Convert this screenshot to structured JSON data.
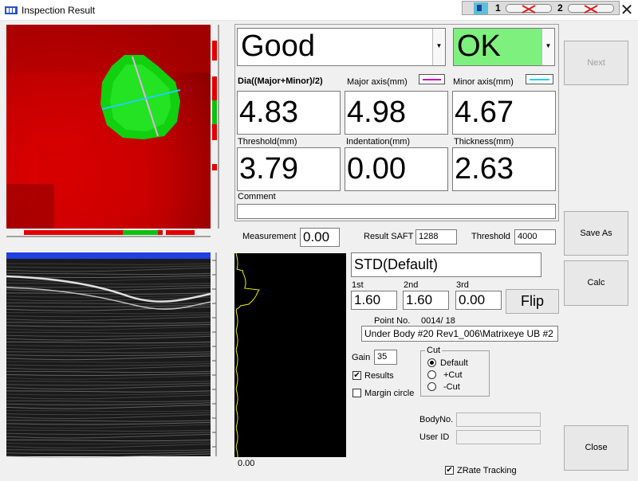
{
  "window": {
    "title": "Inspection Result",
    "tray": {
      "slot1": "1",
      "slot2": "2"
    }
  },
  "result": {
    "quality": "Good",
    "verdict": "OK",
    "verdict_color": "#7ef07e"
  },
  "measurements": {
    "dia_label": "Dia((Major+Minor)/2)",
    "dia_value": "4.83",
    "major_label": "Major axis(mm)",
    "major_value": "4.98",
    "major_color": "#c000c0",
    "minor_label": "Minor axis(mm)",
    "minor_value": "4.67",
    "minor_color": "#20d0f0",
    "threshold_label": "Threshold(mm)",
    "threshold_value": "3.79",
    "indentation_label": "Indentation(mm)",
    "indentation_value": "0.00",
    "thickness_label": "Thickness(mm)",
    "thickness_value": "2.63",
    "comment_label": "Comment",
    "comment_value": ""
  },
  "ascan": {
    "measurement_label": "Measurement",
    "measurement_value": "0.00",
    "result_saft_label": "Result SAFT",
    "result_saft_value": "1288",
    "threshold_label": "Threshold",
    "threshold_value": "4000",
    "bottom_value": "0.00"
  },
  "settings": {
    "profile": "STD(Default)",
    "first_label": "1st",
    "first_value": "1.60",
    "second_label": "2nd",
    "second_value": "1.60",
    "third_label": "3rd",
    "third_value": "0.00",
    "flip_label": "Flip",
    "point_label": "Point No.",
    "point_value": "0014/  18",
    "path_value": "Under Body #20 Rev1_006\\Matrixeye UB #2",
    "gain_label": "Gain",
    "gain_value": "35",
    "results_label": "Results",
    "results_checked": "✔",
    "margin_label": "Margin circle",
    "cut_title": "Cut",
    "cut_default": "Default",
    "cut_plus": "+Cut",
    "cut_minus": "-Cut",
    "body_label": "BodyNo.",
    "body_value": "",
    "user_label": "User ID",
    "user_value": "",
    "zrate_label": "ZRate Tracking",
    "zrate_checked": "✔"
  },
  "buttons": {
    "next": "Next",
    "save_as": "Save As",
    "calc": "Calc",
    "close": "Close"
  },
  "icons": {
    "app": "app-logo-icon",
    "close": "close-icon",
    "tray": "tray-device-icon"
  }
}
